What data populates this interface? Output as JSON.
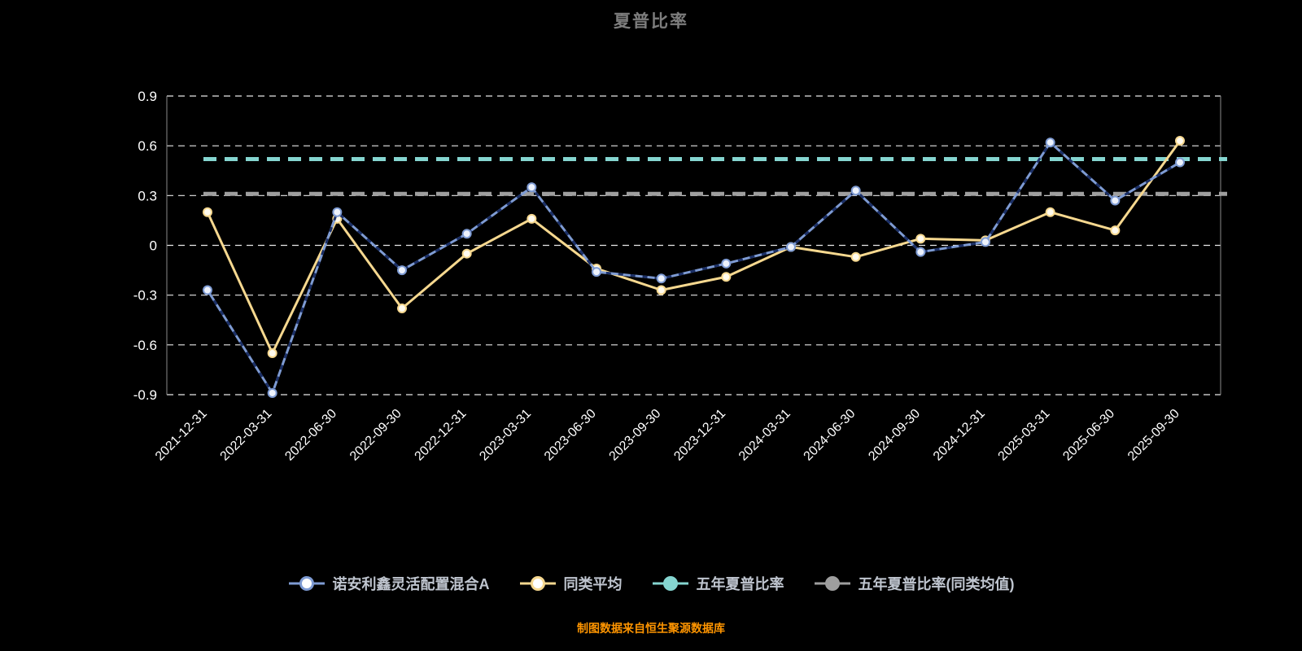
{
  "page": {
    "title": "夏普比率",
    "footer": "制图数据来自恒生聚源数据库"
  },
  "styles": {
    "background": "#000000",
    "title_color": "#7D7D7D",
    "tick_color": "#FFFFFF",
    "grid_color": "#E8E8E8",
    "axis_color": "#8A8A8A",
    "legend_text_color": "#BFC5CF",
    "footer_color": "#FF9500"
  },
  "chart_data": {
    "type": "line",
    "title": "夏普比率",
    "xlabel": "",
    "ylabel": "",
    "ylim": [
      -0.9,
      0.9
    ],
    "yticks": [
      "0.9",
      "0.6",
      "0.3",
      "0",
      "-0.3",
      "-0.6",
      "-0.9"
    ],
    "grid": true,
    "grid_style": "dashed",
    "legend_position": "bottom",
    "categories": [
      "2021-12-31",
      "2022-03-31",
      "2022-06-30",
      "2022-09-30",
      "2022-12-31",
      "2023-03-31",
      "2023-06-30",
      "2023-09-30",
      "2023-12-31",
      "2024-03-31",
      "2024-06-30",
      "2024-09-30",
      "2024-12-31",
      "2025-03-31",
      "2025-06-30",
      "2025-09-30"
    ],
    "series": [
      {
        "name": "诺安利鑫灵活配置混合A",
        "type": "line",
        "color": "#7E9BD3",
        "overlay_dash_color": "#1B2F66",
        "marker_fill": "#EDF2FC",
        "values": [
          -0.27,
          -0.89,
          0.2,
          -0.15,
          0.07,
          0.35,
          -0.16,
          -0.2,
          -0.11,
          -0.01,
          0.33,
          -0.04,
          0.02,
          0.62,
          0.27,
          0.5
        ]
      },
      {
        "name": "同类平均",
        "type": "line",
        "color": "#F6D88F",
        "marker_fill": "#FFFBEF",
        "values": [
          0.2,
          -0.65,
          0.16,
          -0.38,
          -0.05,
          0.16,
          -0.14,
          -0.27,
          -0.19,
          -0.01,
          -0.07,
          0.04,
          0.03,
          0.2,
          0.09,
          0.63
        ]
      },
      {
        "name": "五年夏普比率",
        "type": "hline",
        "color": "#85D5D0",
        "value": 0.52
      },
      {
        "name": "五年夏普比率(同类均值)",
        "type": "hline",
        "color": "#9E9E9E",
        "value": 0.31
      }
    ]
  }
}
